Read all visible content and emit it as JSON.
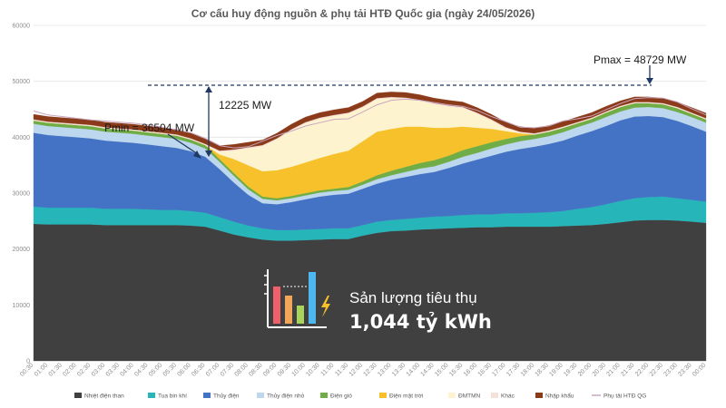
{
  "chart_data": {
    "type": "area",
    "title": "Cơ cấu huy động nguồn & phụ tải HTĐ Quốc gia (ngày 24/05/2026)",
    "x": [
      "00:30",
      "01:00",
      "01:30",
      "02:00",
      "02:30",
      "03:00",
      "03:30",
      "04:00",
      "04:30",
      "05:00",
      "05:30",
      "06:00",
      "06:30",
      "07:00",
      "07:30",
      "08:00",
      "08:30",
      "09:00",
      "09:30",
      "10:00",
      "10:30",
      "11:00",
      "11:30",
      "12:00",
      "12:30",
      "13:00",
      "13:30",
      "14:00",
      "14:30",
      "15:00",
      "15:30",
      "16:00",
      "16:30",
      "17:00",
      "17:30",
      "18:00",
      "18:30",
      "19:00",
      "19:30",
      "20:00",
      "20:30",
      "21:00",
      "21:30",
      "22:00",
      "22:30",
      "23:00",
      "23:30",
      "00:00"
    ],
    "ylim": [
      0,
      60000
    ],
    "yticks": [
      "0",
      "10000",
      "20000",
      "30000",
      "40000",
      "50000",
      "60000"
    ],
    "grid": true,
    "legend_position": "bottom",
    "series": [
      {
        "name": "Nhiệt điện than",
        "color": "#404040",
        "values": [
          24500,
          24400,
          24400,
          24400,
          24400,
          24300,
          24300,
          24300,
          24300,
          24300,
          24300,
          24200,
          24000,
          23300,
          22600,
          22100,
          21700,
          21500,
          21500,
          21600,
          21700,
          21800,
          21800,
          22400,
          22900,
          23200,
          23300,
          23500,
          23600,
          23700,
          23800,
          23900,
          23900,
          24000,
          24000,
          24000,
          24000,
          24100,
          24200,
          24300,
          24500,
          24800,
          25100,
          25200,
          25200,
          25100,
          24900,
          24700
        ]
      },
      {
        "name": "Tua bin khí",
        "color": "#26b5b8",
        "values": [
          3100,
          3000,
          3000,
          3000,
          3000,
          2900,
          2900,
          2900,
          2800,
          2700,
          2700,
          2600,
          2500,
          2400,
          2300,
          2100,
          2000,
          1900,
          1900,
          1900,
          1900,
          1900,
          1900,
          1900,
          2000,
          2000,
          2100,
          2100,
          2200,
          2200,
          2300,
          2300,
          2300,
          2400,
          2400,
          2500,
          2600,
          2700,
          3000,
          3200,
          3500,
          3800,
          4000,
          4100,
          4200,
          4000,
          3900,
          3800
        ]
      },
      {
        "name": "Thủy điện",
        "color": "#4472c4",
        "values": [
          13200,
          13000,
          12800,
          12600,
          12400,
          12200,
          12000,
          11800,
          11600,
          11400,
          11100,
          10700,
          10000,
          8600,
          7000,
          5500,
          4500,
          4600,
          5000,
          5400,
          5800,
          6000,
          6200,
          6500,
          6800,
          7200,
          7500,
          7800,
          8000,
          8600,
          9200,
          9800,
          10500,
          11000,
          11500,
          11800,
          12200,
          12600,
          13100,
          13600,
          14000,
          14400,
          14600,
          14500,
          14200,
          13800,
          13200,
          12500
        ]
      },
      {
        "name": "Thủy điện nhỏ",
        "color": "#bdd7ee",
        "values": [
          1600,
          1600,
          1600,
          1600,
          1600,
          1600,
          1600,
          1600,
          1600,
          1600,
          1600,
          1500,
          1500,
          1300,
          1200,
          1000,
          800,
          700,
          700,
          700,
          700,
          700,
          700,
          700,
          800,
          800,
          900,
          1000,
          1000,
          1100,
          1200,
          1200,
          1300,
          1300,
          1400,
          1400,
          1400,
          1500,
          1500,
          1500,
          1600,
          1600,
          1600,
          1600,
          1600,
          1600,
          1600,
          1600
        ]
      },
      {
        "name": "Điện gió",
        "color": "#70ad47",
        "values": [
          600,
          600,
          600,
          600,
          600,
          600,
          600,
          600,
          600,
          600,
          600,
          600,
          600,
          500,
          500,
          500,
          400,
          400,
          400,
          400,
          400,
          400,
          500,
          600,
          700,
          800,
          900,
          1000,
          1100,
          1100,
          1200,
          1200,
          1100,
          1000,
          900,
          800,
          800,
          800,
          700,
          700,
          800,
          800,
          800,
          700,
          700,
          700,
          600,
          600
        ]
      },
      {
        "name": "Điện mặt trời",
        "color": "#f6c12b",
        "values": [
          0,
          0,
          0,
          0,
          0,
          0,
          0,
          0,
          0,
          0,
          0,
          0,
          0,
          800,
          2500,
          3800,
          4500,
          5000,
          5200,
          5500,
          5800,
          6200,
          6500,
          7200,
          7800,
          7500,
          7200,
          6500,
          5800,
          5000,
          4200,
          3300,
          2400,
          1400,
          500,
          0,
          0,
          0,
          0,
          0,
          0,
          0,
          0,
          0,
          0,
          0,
          0,
          0
        ]
      },
      {
        "name": "ĐMTMN",
        "color": "#fdf3cf",
        "values": [
          0,
          0,
          0,
          0,
          0,
          0,
          0,
          0,
          0,
          0,
          0,
          0,
          0,
          500,
          1500,
          3000,
          4500,
          5500,
          6500,
          7000,
          7000,
          6800,
          6600,
          6000,
          5800,
          5500,
          5000,
          4600,
          4200,
          3800,
          3300,
          2500,
          1500,
          500,
          100,
          0,
          0,
          0,
          0,
          0,
          0,
          0,
          0,
          0,
          0,
          0,
          0,
          0
        ]
      },
      {
        "name": "Khác",
        "color": "#f6e0da",
        "values": [
          200,
          200,
          200,
          200,
          200,
          200,
          200,
          200,
          200,
          200,
          200,
          200,
          200,
          200,
          200,
          200,
          200,
          200,
          200,
          200,
          200,
          200,
          200,
          200,
          200,
          200,
          200,
          200,
          200,
          200,
          200,
          200,
          200,
          200,
          200,
          200,
          200,
          200,
          200,
          200,
          200,
          200,
          200,
          200,
          200,
          200,
          200,
          200
        ]
      },
      {
        "name": "Nhập khẩu",
        "color": "#8b3a1a",
        "values": [
          900,
          900,
          900,
          900,
          900,
          900,
          900,
          900,
          900,
          900,
          900,
          900,
          900,
          900,
          900,
          900,
          900,
          900,
          900,
          900,
          900,
          900,
          900,
          900,
          900,
          900,
          900,
          900,
          900,
          900,
          900,
          900,
          900,
          900,
          900,
          900,
          900,
          900,
          900,
          900,
          900,
          900,
          900,
          900,
          900,
          900,
          900,
          900
        ]
      },
      {
        "name": "Phụ tải HTĐ QG",
        "color": "#c9a8c0",
        "values": [
          44700,
          44000,
          43700,
          43400,
          43100,
          42900,
          42700,
          42500,
          42200,
          41800,
          41300,
          40800,
          39800,
          38500,
          38100,
          38300,
          39300,
          40300,
          41100,
          42000,
          42600,
          43200,
          43300,
          44500,
          45800,
          46600,
          46800,
          46600,
          46200,
          45800,
          45500,
          44800,
          43700,
          42800,
          41800,
          41700,
          42000,
          42900,
          43300,
          43800,
          44900,
          46000,
          46900,
          47100,
          47000,
          46300,
          45100,
          44000
        ]
      }
    ],
    "annotations": {
      "pmin": "Pmin = 36504 MW",
      "pmax": "Pmax = 48729 MW",
      "delta": "12225 MW"
    },
    "pmin_value": 36504,
    "pmax_value": 48729
  },
  "kpi": {
    "label": "Sản lượng tiêu thụ",
    "value": "1,044 tỷ kWh",
    "icon": "bar-chart-bolt-icon"
  }
}
